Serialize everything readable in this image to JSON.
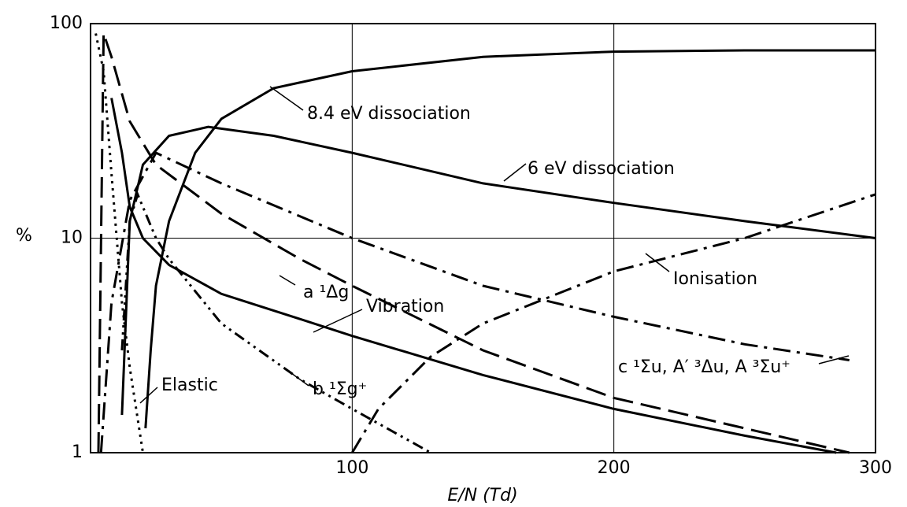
{
  "chart_data": {
    "type": "line",
    "xlabel": "E/N (Td)",
    "ylabel": "%",
    "xlim": [
      0,
      300
    ],
    "xticks": [
      100,
      200,
      300
    ],
    "ylim": [
      1,
      100
    ],
    "yticks": [
      1,
      10,
      100
    ],
    "ylog": true,
    "grid": true,
    "color": "#000000",
    "series": [
      {
        "name": "8.4 eV dissociation",
        "style": "solid",
        "x": [
          21,
          23,
          25,
          30,
          40,
          50,
          70,
          100,
          150,
          200,
          250,
          300
        ],
        "values": [
          1.3,
          3,
          6,
          12,
          25,
          36,
          50,
          60,
          70,
          74,
          75,
          75
        ]
      },
      {
        "name": "6 eV dissociation",
        "style": "solid",
        "x": [
          12,
          15,
          20,
          30,
          45,
          70,
          100,
          150,
          200,
          250,
          300
        ],
        "values": [
          1.5,
          12,
          22,
          30,
          33,
          30,
          25,
          18,
          14.6,
          12,
          10
        ]
      },
      {
        "name": "Ionisation",
        "style": "dashdot",
        "x": [
          100,
          110,
          130,
          150,
          200,
          250,
          300
        ],
        "values": [
          1,
          1.6,
          2.8,
          4,
          7,
          10,
          16
        ]
      },
      {
        "name": "a ¹Δg",
        "style": "dashed",
        "x": [
          3,
          5,
          8,
          15,
          25,
          50,
          80,
          100,
          150,
          200,
          250,
          290
        ],
        "values": [
          1,
          90,
          70,
          35,
          22,
          13,
          8,
          6,
          3,
          1.8,
          1.3,
          1
        ]
      },
      {
        "name": "Vibration",
        "style": "solid",
        "x": [
          8,
          12,
          15,
          20,
          30,
          50,
          80,
          100,
          150,
          200,
          250,
          285
        ],
        "values": [
          45,
          25,
          14,
          10,
          7.5,
          5.5,
          4.2,
          3.5,
          2.3,
          1.6,
          1.2,
          1
        ]
      },
      {
        "name": "b ¹Σg⁺",
        "style": "dashdotdot",
        "x": [
          12,
          15,
          18,
          25,
          30,
          50,
          80,
          100,
          130
        ],
        "values": [
          3,
          12,
          16,
          10,
          8,
          4,
          2.2,
          1.6,
          1
        ]
      },
      {
        "name": "Elastic",
        "style": "dotted",
        "x": [
          2,
          5,
          8,
          12,
          15,
          20
        ],
        "values": [
          90,
          60,
          20,
          5,
          2.5,
          1
        ]
      },
      {
        "name": "c ¹Σu, A′ ³Δu, A ³Σu⁺",
        "style": "dashdot",
        "x": [
          4,
          8,
          15,
          25,
          50,
          100,
          150,
          200,
          250,
          290
        ],
        "values": [
          1,
          5,
          15,
          25,
          18,
          10,
          6,
          4.3,
          3.2,
          2.7
        ]
      }
    ]
  }
}
